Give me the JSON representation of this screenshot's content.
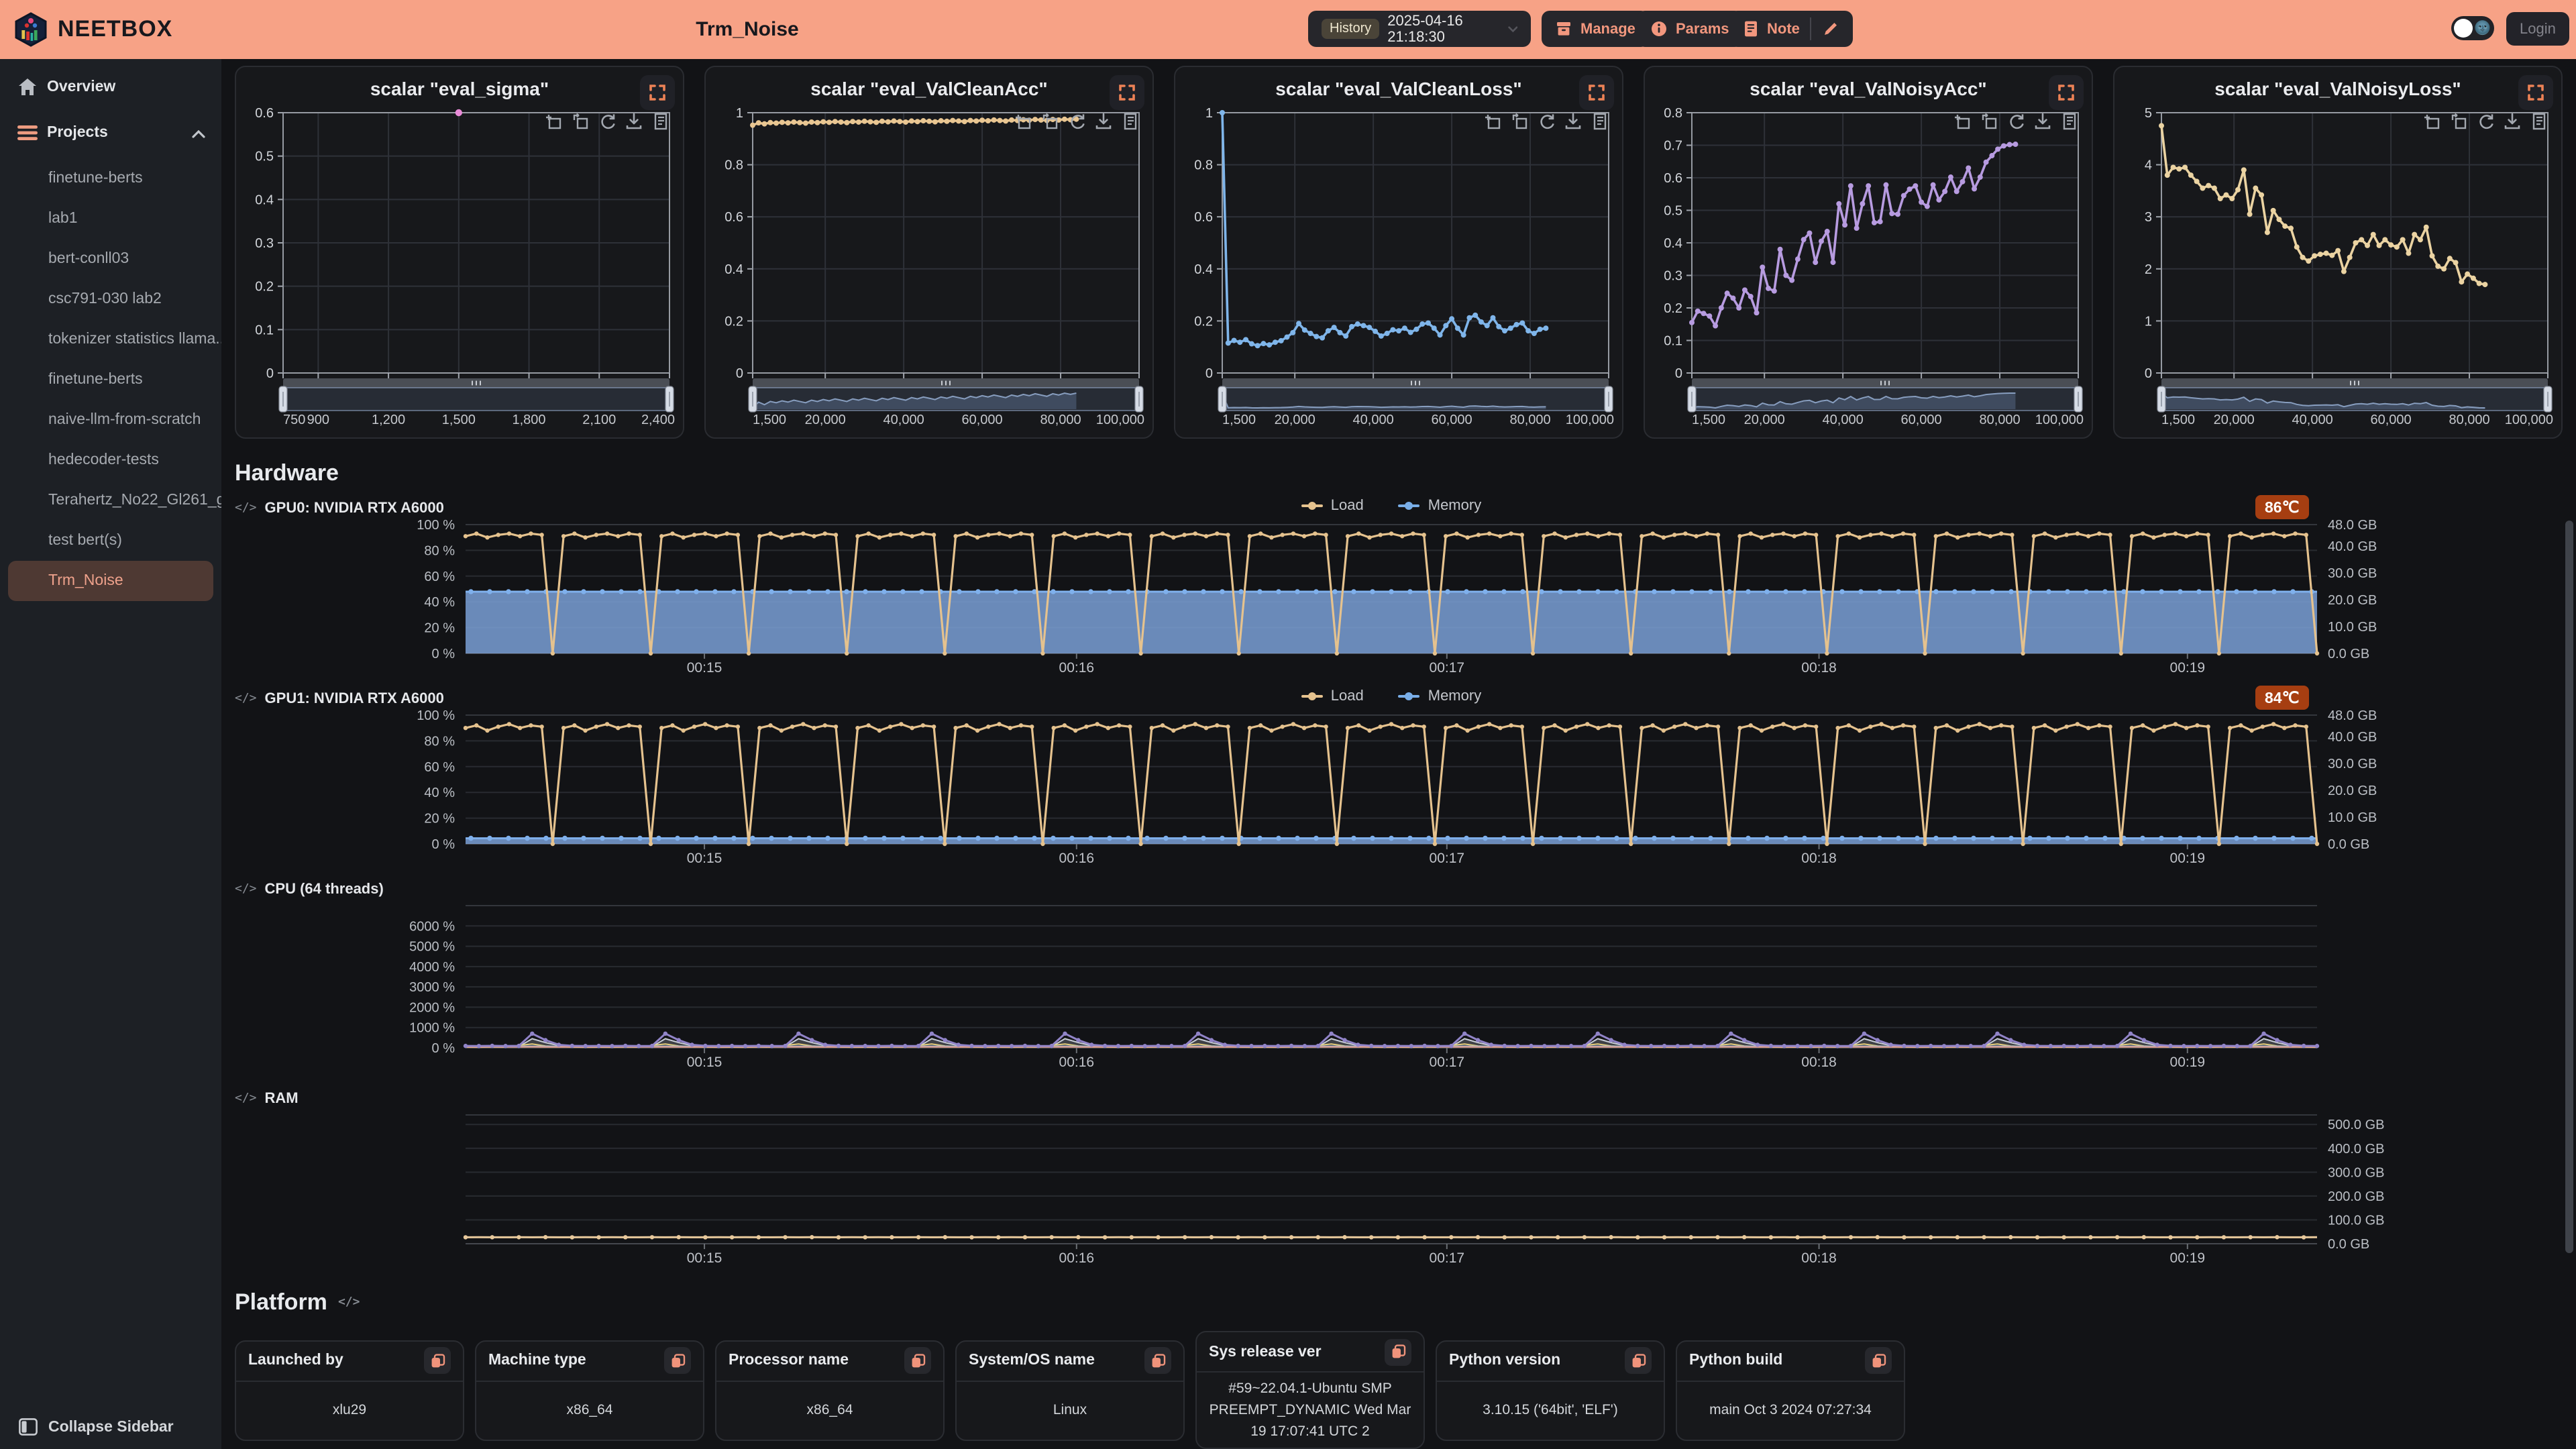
{
  "header": {
    "brand": "NEETBOX",
    "title": "Trm_Noise",
    "history_label": "History",
    "history_value": "2025-04-16 21:18:30",
    "manage_label": "Manage",
    "params_label": "Params",
    "note_label": "Note",
    "login_label": "Login",
    "accent_color": "#F7A286",
    "toggle_moon": "🌚"
  },
  "sidebar": {
    "overview_label": "Overview",
    "projects_label": "Projects",
    "projects": [
      "finetune-berts",
      "lab1",
      "bert-conll03",
      "csc791-030 lab2",
      "tokenizer statistics llama...",
      "finetune-berts",
      "naive-llm-from-scratch",
      "hedecoder-tests",
      "Terahertz_No22_Gl261_gl...",
      "test bert(s)",
      "Trm_Noise"
    ],
    "selected_project": "Trm_Noise",
    "collapse_label": "Collapse Sidebar"
  },
  "sections": {
    "hardware_title": "Hardware",
    "platform_title": "Platform",
    "code_icon": "</>"
  },
  "hardware": {
    "legend": [
      {
        "label": "Load",
        "color": "#E5C28E"
      },
      {
        "label": "Memory",
        "color": "#79AEE8"
      }
    ],
    "rows": [
      {
        "label": "GPU0: NVIDIA RTX A6000",
        "temp": "86℃"
      },
      {
        "label": "GPU1: NVIDIA RTX A6000",
        "temp": "84℃"
      },
      {
        "label": "CPU (64 threads)"
      },
      {
        "label": "RAM"
      }
    ],
    "time_labels": [
      "00:15",
      "00:16",
      "00:17",
      "00:18",
      "00:19"
    ]
  },
  "platform": {
    "cards": [
      {
        "title": "Launched by",
        "value": "xlu29"
      },
      {
        "title": "Machine type",
        "value": "x86_64"
      },
      {
        "title": "Processor name",
        "value": "x86_64"
      },
      {
        "title": "System/OS name",
        "value": "Linux"
      },
      {
        "title": "Sys release ver",
        "value": "#59~22.04.1-Ubuntu SMP PREEMPT_DYNAMIC Wed Mar 19 17:07:41 UTC 2"
      },
      {
        "title": "Python version",
        "value": "3.10.15 ('64bit', 'ELF')"
      },
      {
        "title": "Python build",
        "value": "main Oct 3 2024 07:27:34"
      }
    ]
  },
  "chart_data": [
    {
      "id": "eval_sigma",
      "type": "scatter",
      "title": "scalar \"eval_sigma\"",
      "color": "#E98BD8",
      "xlim": [
        750,
        2400
      ],
      "xticks": [
        750,
        900,
        1200,
        1500,
        1800,
        2100,
        2400
      ],
      "ylim": [
        0,
        0.6
      ],
      "ytick_step": 0.1,
      "x": [
        1500
      ],
      "y": [
        0.6
      ]
    },
    {
      "id": "eval_ValCleanAcc",
      "type": "line",
      "title": "scalar \"eval_ValCleanAcc\"",
      "color": "#E9C692",
      "xlim": [
        1500,
        100000
      ],
      "xticks": [
        1500,
        20000,
        40000,
        60000,
        80000,
        100000
      ],
      "ylim": [
        0,
        1
      ],
      "ytick_step": 0.2,
      "x_start": 1500,
      "x_step": 1500,
      "values": [
        0.952,
        0.961,
        0.957,
        0.962,
        0.96,
        0.963,
        0.961,
        0.964,
        0.962,
        0.96,
        0.964,
        0.962,
        0.965,
        0.963,
        0.966,
        0.964,
        0.962,
        0.966,
        0.964,
        0.967,
        0.965,
        0.963,
        0.967,
        0.965,
        0.968,
        0.966,
        0.964,
        0.968,
        0.966,
        0.969,
        0.967,
        0.965,
        0.969,
        0.967,
        0.97,
        0.968,
        0.966,
        0.97,
        0.968,
        0.971,
        0.969,
        0.972,
        0.97,
        0.968,
        0.972,
        0.97,
        0.973,
        0.971,
        0.974,
        0.972,
        0.97,
        0.974,
        0.972,
        0.975,
        0.973,
        0.975
      ]
    },
    {
      "id": "eval_ValCleanLoss",
      "type": "line",
      "title": "scalar \"eval_ValCleanLoss\"",
      "color": "#7FB5EA",
      "xlim": [
        1500,
        100000
      ],
      "xticks": [
        1500,
        20000,
        40000,
        60000,
        80000,
        100000
      ],
      "ylim": [
        0,
        1
      ],
      "ytick_step": 0.2,
      "x_start": 1500,
      "x_step": 1500,
      "values": [
        1.0,
        0.115,
        0.125,
        0.118,
        0.128,
        0.112,
        0.105,
        0.113,
        0.108,
        0.118,
        0.124,
        0.138,
        0.155,
        0.19,
        0.165,
        0.152,
        0.14,
        0.135,
        0.162,
        0.175,
        0.155,
        0.142,
        0.178,
        0.188,
        0.182,
        0.175,
        0.16,
        0.142,
        0.152,
        0.166,
        0.162,
        0.172,
        0.156,
        0.168,
        0.188,
        0.192,
        0.172,
        0.146,
        0.182,
        0.208,
        0.172,
        0.146,
        0.212,
        0.222,
        0.196,
        0.182,
        0.212,
        0.178,
        0.162,
        0.172,
        0.186,
        0.192,
        0.162,
        0.152,
        0.168,
        0.172
      ]
    },
    {
      "id": "eval_ValNoisyAcc",
      "type": "line",
      "title": "scalar \"eval_ValNoisyAcc\"",
      "color": "#B79BE0",
      "xlim": [
        1500,
        100000
      ],
      "xticks": [
        1500,
        20000,
        40000,
        60000,
        80000,
        100000
      ],
      "ylim": [
        0,
        0.8
      ],
      "ytick_step": 0.1,
      "x_start": 1500,
      "x_step": 1500,
      "values": [
        0.155,
        0.19,
        0.183,
        0.175,
        0.145,
        0.2,
        0.245,
        0.23,
        0.2,
        0.255,
        0.235,
        0.185,
        0.325,
        0.26,
        0.252,
        0.38,
        0.3,
        0.285,
        0.35,
        0.41,
        0.43,
        0.34,
        0.405,
        0.435,
        0.34,
        0.52,
        0.455,
        0.575,
        0.445,
        0.52,
        0.575,
        0.462,
        0.465,
        0.578,
        0.49,
        0.488,
        0.545,
        0.565,
        0.575,
        0.525,
        0.512,
        0.578,
        0.532,
        0.558,
        0.602,
        0.558,
        0.588,
        0.63,
        0.566,
        0.602,
        0.648,
        0.668,
        0.688,
        0.698,
        0.702,
        0.703
      ]
    },
    {
      "id": "eval_ValNoisyLoss",
      "type": "line",
      "title": "scalar \"eval_ValNoisyLoss\"",
      "color": "#EBD3A2",
      "xlim": [
        1500,
        100000
      ],
      "xticks": [
        1500,
        20000,
        40000,
        60000,
        80000,
        100000
      ],
      "ylim": [
        0,
        5
      ],
      "ytick_step": 1,
      "x_start": 1500,
      "x_step": 1500,
      "values": [
        4.75,
        3.8,
        3.95,
        3.92,
        3.95,
        3.8,
        3.68,
        3.55,
        3.6,
        3.55,
        3.35,
        3.42,
        3.35,
        3.52,
        3.9,
        3.05,
        3.55,
        3.42,
        2.7,
        3.12,
        2.95,
        2.82,
        2.78,
        2.42,
        2.22,
        2.15,
        2.25,
        2.28,
        2.3,
        2.26,
        2.35,
        1.95,
        2.22,
        2.5,
        2.56,
        2.45,
        2.66,
        2.45,
        2.56,
        2.46,
        2.42,
        2.56,
        2.3,
        2.66,
        2.56,
        2.8,
        2.25,
        2.05,
        2.0,
        2.2,
        2.12,
        1.75,
        1.9,
        1.82,
        1.72,
        1.7
      ]
    },
    {
      "id": "gpu0",
      "type": "hardware",
      "kind": "gpu",
      "left": {
        "max": 100,
        "ticks": [
          [
            "100 %",
            100
          ],
          [
            "80 %",
            80
          ],
          [
            "60 %",
            60
          ],
          [
            "40 %",
            40
          ],
          [
            "20 %",
            20
          ],
          [
            "0 %",
            0
          ]
        ]
      },
      "right": {
        "max": 48,
        "ticks": [
          [
            "48.0 GB",
            48
          ],
          [
            "40.0 GB",
            40
          ],
          [
            "30.0 GB",
            30
          ],
          [
            "20.0 GB",
            20
          ],
          [
            "10.0 GB",
            10
          ],
          [
            "0.0 GB",
            0
          ]
        ]
      },
      "time": [
        [
          0.129,
          "00:15"
        ],
        [
          0.33,
          "00:16"
        ],
        [
          0.53,
          "00:17"
        ],
        [
          0.731,
          "00:18"
        ],
        [
          0.93,
          "00:19"
        ]
      ],
      "series": [
        {
          "name": "Memory",
          "type": "area",
          "value": 23.0,
          "scale_max": 48,
          "color": "#7FB0EC",
          "fill": "rgba(122,160,214,0.85)"
        },
        {
          "name": "Load",
          "type": "pattern",
          "cycle": [
            91,
            93,
            90,
            92,
            93,
            91,
            93,
            92,
            0
          ],
          "repeats": 19,
          "scale_max": 100,
          "color": "#E5C28E",
          "markers": true
        }
      ]
    },
    {
      "id": "gpu1",
      "type": "hardware",
      "kind": "gpu",
      "left": {
        "max": 100,
        "ticks": [
          [
            "100 %",
            100
          ],
          [
            "80 %",
            80
          ],
          [
            "60 %",
            60
          ],
          [
            "40 %",
            40
          ],
          [
            "20 %",
            20
          ],
          [
            "0 %",
            0
          ]
        ]
      },
      "right": {
        "max": 48,
        "ticks": [
          [
            "48.0 GB",
            48
          ],
          [
            "40.0 GB",
            40
          ],
          [
            "30.0 GB",
            30
          ],
          [
            "20.0 GB",
            20
          ],
          [
            "10.0 GB",
            10
          ],
          [
            "0.0 GB",
            0
          ]
        ]
      },
      "time": [
        [
          0.129,
          "00:15"
        ],
        [
          0.33,
          "00:16"
        ],
        [
          0.53,
          "00:17"
        ],
        [
          0.731,
          "00:18"
        ],
        [
          0.93,
          "00:19"
        ]
      ],
      "series": [
        {
          "name": "Memory",
          "type": "area",
          "value": 2.1,
          "scale_max": 48,
          "color": "#7FB0EC",
          "fill": "rgba(122,160,214,0.85)"
        },
        {
          "name": "Load",
          "type": "pattern",
          "cycle": [
            90,
            92,
            88,
            91,
            93,
            90,
            92,
            91,
            0
          ],
          "repeats": 19,
          "scale_max": 100,
          "color": "#E5C28E",
          "markers": true
        }
      ]
    },
    {
      "id": "cpu",
      "type": "hardware",
      "kind": "cpu",
      "left": {
        "max": 7000,
        "ticks": [
          [
            "6000 %",
            6000
          ],
          [
            "5000 %",
            5000
          ],
          [
            "4000 %",
            4000
          ],
          [
            "3000 %",
            3000
          ],
          [
            "2000 %",
            2000
          ],
          [
            "1000 %",
            1000
          ],
          [
            "0 %",
            0
          ]
        ]
      },
      "right": null,
      "time": [
        [
          0.129,
          "00:15"
        ],
        [
          0.33,
          "00:16"
        ],
        [
          0.53,
          "00:17"
        ],
        [
          0.731,
          "00:18"
        ],
        [
          0.93,
          "00:19"
        ]
      ],
      "series": [
        {
          "type": "pattern",
          "cycle": [
            60,
            55,
            65,
            58,
            60,
            450,
            260,
            110,
            65,
            58
          ],
          "repeats": 14,
          "scale_max": 7000,
          "color": "#C9CDD6",
          "width": 1,
          "fill": "rgba(200,205,214,0.25)"
        },
        {
          "type": "pattern",
          "cycle": [
            35,
            30,
            40,
            32,
            120,
            190,
            90,
            60,
            38,
            30
          ],
          "repeats": 14,
          "scale_max": 7000,
          "color": "#E5CE7C",
          "width": 1
        },
        {
          "type": "pattern",
          "cycle": [
            75,
            70,
            78,
            72,
            76,
            80,
            74,
            73,
            75,
            72
          ],
          "repeats": 14,
          "scale_max": 7000,
          "color": "#7FAEE0",
          "width": 1
        },
        {
          "type": "pattern",
          "cycle": [
            45,
            42,
            48,
            44,
            46,
            50,
            44,
            43,
            45,
            42
          ],
          "repeats": 14,
          "scale_max": 7000,
          "color": "#EDA28C",
          "width": 1
        },
        {
          "type": "pattern",
          "cycle": [
            95,
            90,
            100,
            92,
            95,
            700,
            380,
            150,
            100,
            92
          ],
          "repeats": 14,
          "scale_max": 7000,
          "color": "#9184C8",
          "width": 1.5,
          "markers": true
        }
      ]
    },
    {
      "id": "ram",
      "type": "hardware",
      "kind": "ram",
      "left": null,
      "right": {
        "max": 540,
        "ticks": [
          [
            "500.0 GB",
            500
          ],
          [
            "400.0 GB",
            400
          ],
          [
            "300.0 GB",
            300
          ],
          [
            "200.0 GB",
            200
          ],
          [
            "100.0 GB",
            100
          ],
          [
            "0.0 GB",
            0
          ]
        ]
      },
      "time": [
        [
          0.129,
          "00:15"
        ],
        [
          0.33,
          "00:16"
        ],
        [
          0.53,
          "00:17"
        ],
        [
          0.731,
          "00:18"
        ],
        [
          0.93,
          "00:19"
        ]
      ],
      "series": [
        {
          "type": "pattern",
          "cycle": [
            27,
            27.5,
            27.2,
            26.9,
            27.3
          ],
          "repeats": 28,
          "scale_max": 540,
          "color": "#E8C99C",
          "width": 1.5,
          "markers": true,
          "mstep": 2
        }
      ]
    }
  ]
}
